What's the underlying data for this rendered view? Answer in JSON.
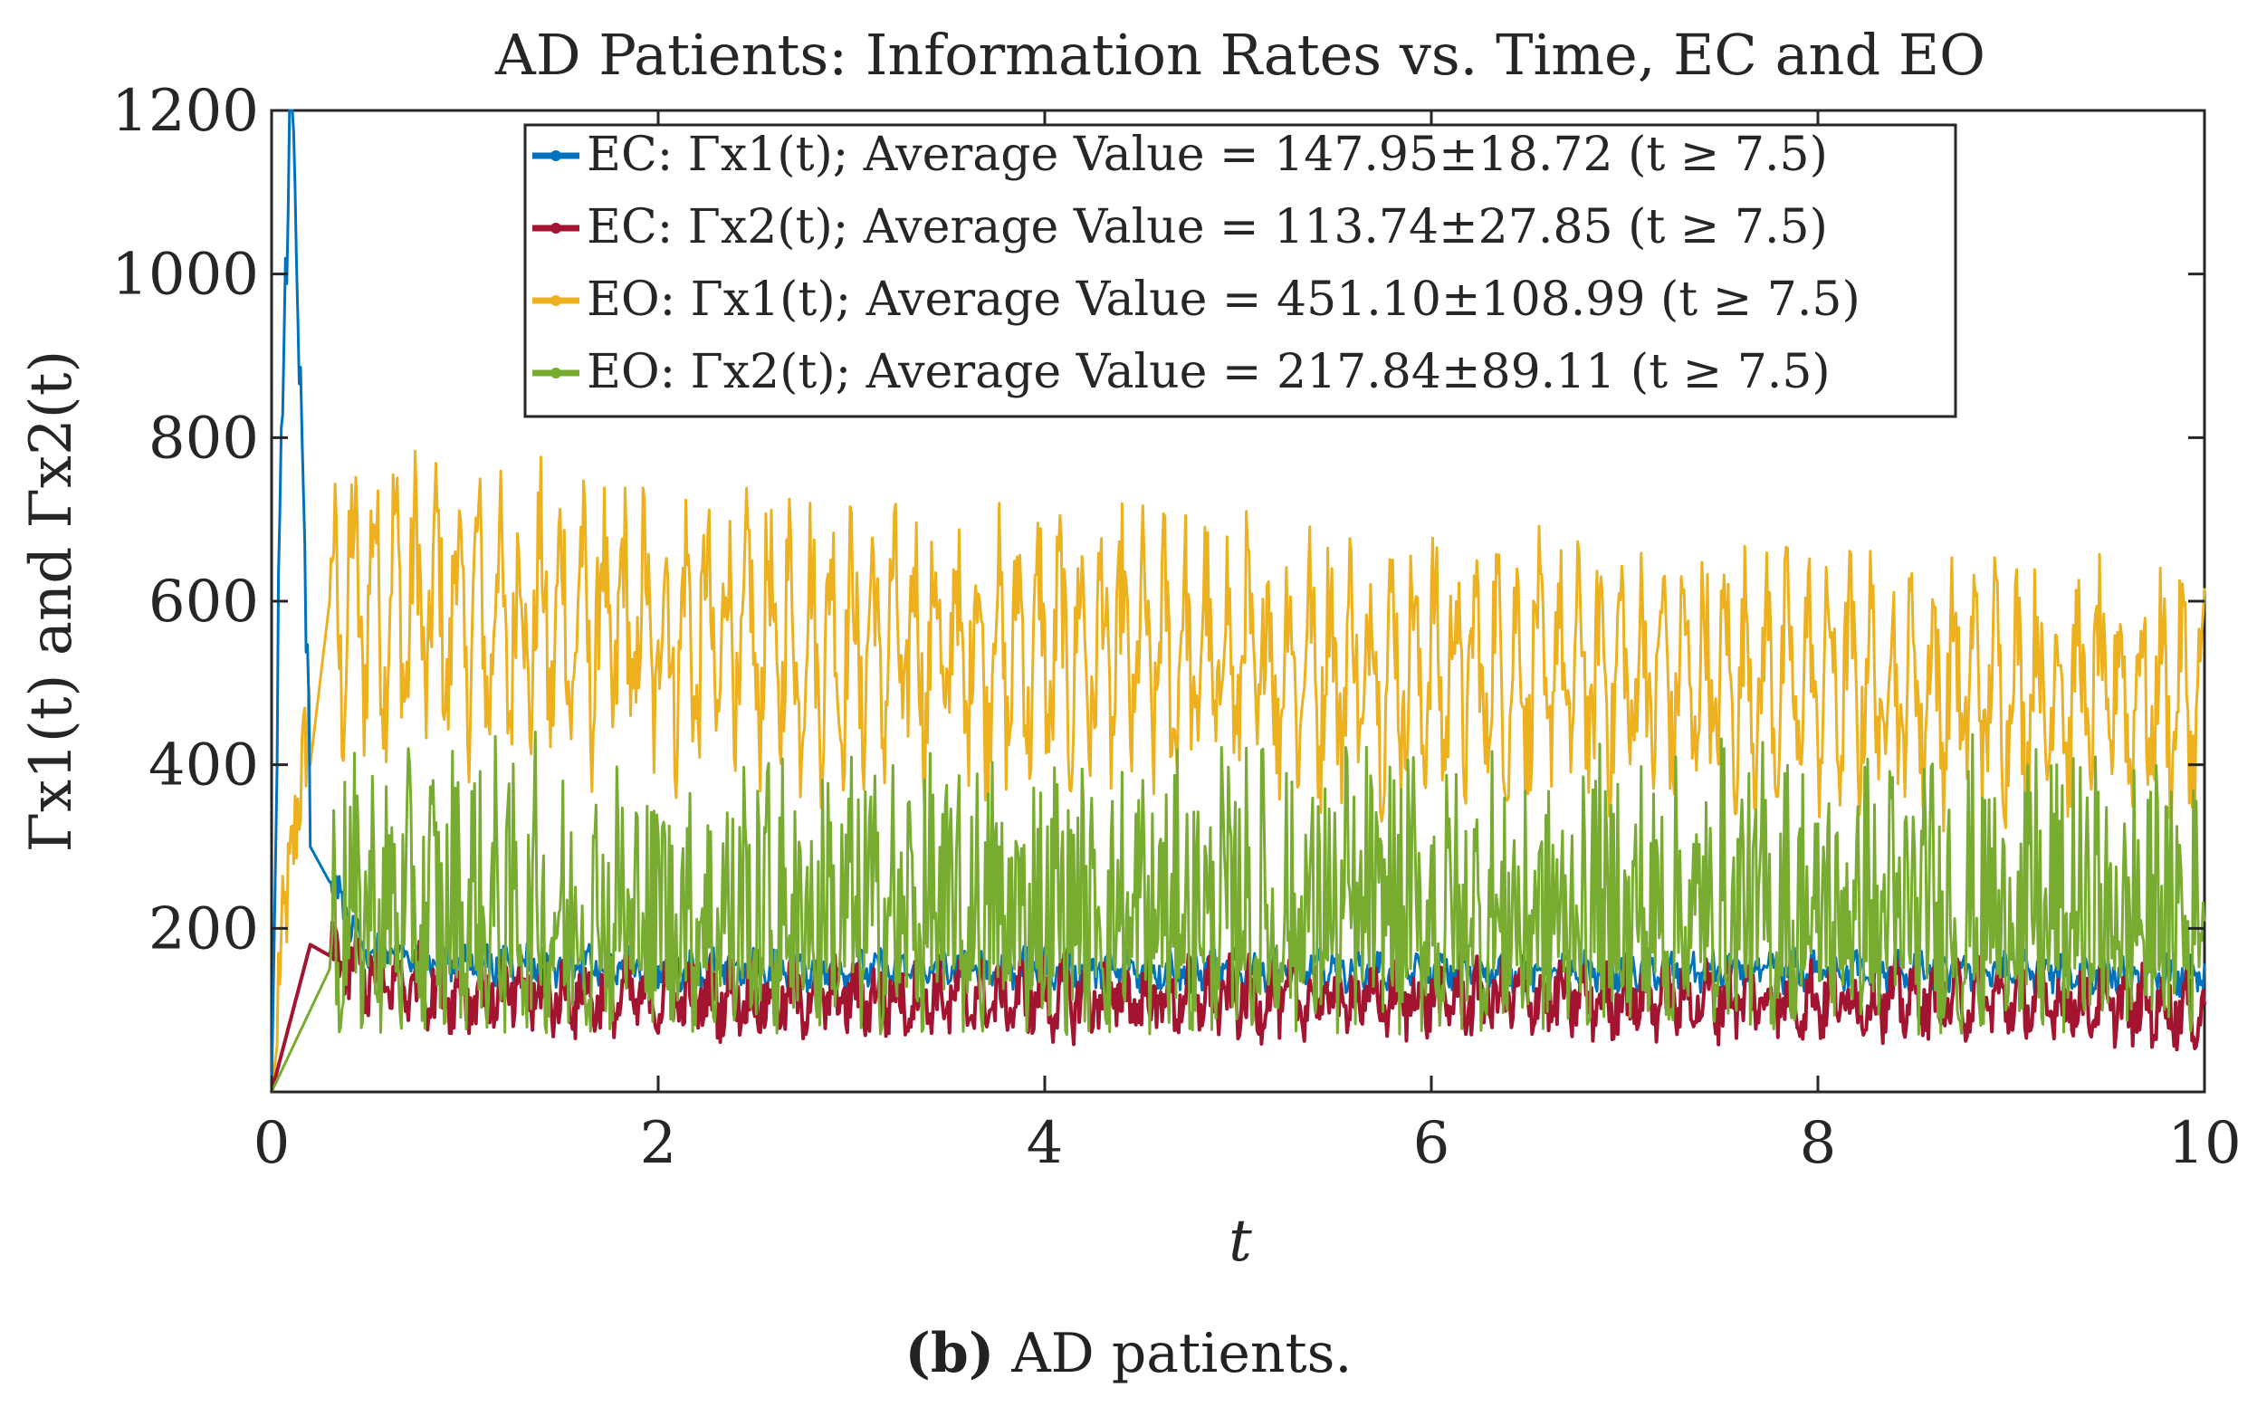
{
  "caption": {
    "label": "(b)",
    "text": " AD patients."
  },
  "chart_data": {
    "type": "line",
    "title": "AD Patients: Information Rates vs. Time, EC and EO",
    "xlabel": "t",
    "ylabel": "Γx1(t) and Γx2(t)",
    "xlim": [
      0,
      10
    ],
    "ylim": [
      0,
      1200
    ],
    "xticks": [
      "0",
      "2",
      "4",
      "6",
      "8",
      "10"
    ],
    "yticks": [
      "200",
      "400",
      "600",
      "800",
      "1000",
      "1200"
    ],
    "grid": false,
    "legend_position": "top",
    "series": [
      {
        "name": "EC: Γx1(t); Average Value = 147.95±18.72 (t ≥ 7.5)",
        "color": "#0072BD",
        "base": 148,
        "amp": 36,
        "floor": 90,
        "initial_peak": 1200,
        "x": [
          0,
          0.05,
          0.1,
          0.2,
          0.5,
          1,
          2,
          3,
          4,
          5,
          6,
          7,
          8,
          9,
          10
        ],
        "y": [
          0,
          700,
          1200,
          300,
          170,
          160,
          150,
          150,
          150,
          150,
          148,
          148,
          148,
          148,
          140
        ]
      },
      {
        "name": "EC: Γx2(t); Average Value = 113.74±27.85 (t ≥ 7.5)",
        "color": "#A2142F",
        "base": 114,
        "amp": 70,
        "floor": 40,
        "x": [
          0,
          0.2,
          0.5,
          1,
          2,
          3,
          4,
          5,
          6,
          7,
          8,
          9,
          10
        ],
        "y": [
          0,
          180,
          140,
          120,
          115,
          115,
          114,
          114,
          114,
          114,
          113,
          113,
          100
        ]
      },
      {
        "name": "EO: Γx1(t); Average Value = 451.10±108.99 (t ≥ 7.5)",
        "color": "#EDB120",
        "base": 460,
        "amp": 330,
        "floor": 260,
        "initial_peak": 1050,
        "x": [
          0,
          0.3,
          0.5,
          1,
          1.5,
          2,
          3,
          4,
          5,
          6,
          7,
          8,
          9,
          10
        ],
        "y": [
          0,
          600,
          700,
          620,
          600,
          560,
          540,
          520,
          500,
          480,
          470,
          460,
          450,
          420
        ]
      },
      {
        "name": "EO: Γx2(t); Average Value = 217.84±89.11 (t ≥ 7.5)",
        "color": "#77AC30",
        "base": 220,
        "amp": 330,
        "floor": 70,
        "x": [
          0,
          0.5,
          1,
          2,
          3,
          4,
          5,
          6,
          7,
          8,
          9,
          10
        ],
        "y": [
          0,
          250,
          240,
          230,
          225,
          220,
          220,
          218,
          218,
          218,
          218,
          230
        ]
      }
    ]
  }
}
